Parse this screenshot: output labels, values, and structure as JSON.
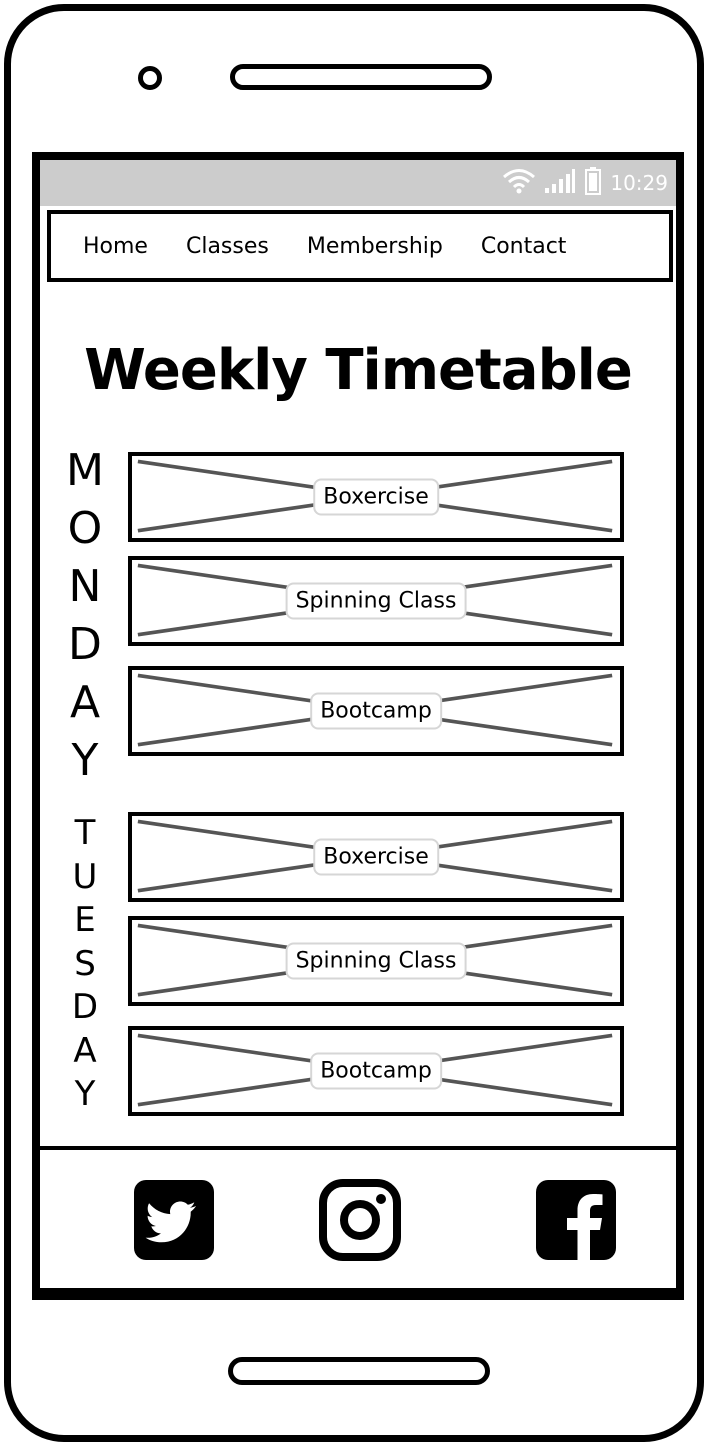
{
  "status_bar": {
    "time": "10:29"
  },
  "nav": {
    "items": [
      {
        "label": "Home"
      },
      {
        "label": "Classes"
      },
      {
        "label": "Membership"
      },
      {
        "label": "Contact"
      }
    ]
  },
  "main": {
    "title": "Weekly Timetable",
    "days": [
      {
        "letters": [
          "M",
          "O",
          "N",
          "D",
          "A",
          "Y"
        ],
        "classes": [
          {
            "label": "Boxercise"
          },
          {
            "label": "Spinning Class"
          },
          {
            "label": "Bootcamp"
          }
        ]
      },
      {
        "letters": [
          "T",
          "U",
          "E",
          "S",
          "D",
          "A",
          "Y"
        ],
        "classes": [
          {
            "label": "Boxercise"
          },
          {
            "label": "Spinning Class"
          },
          {
            "label": "Bootcamp"
          }
        ]
      }
    ]
  },
  "footer": {
    "social": [
      {
        "icon": "twitter-icon"
      },
      {
        "icon": "instagram-icon"
      },
      {
        "icon": "facebook-icon"
      }
    ]
  }
}
